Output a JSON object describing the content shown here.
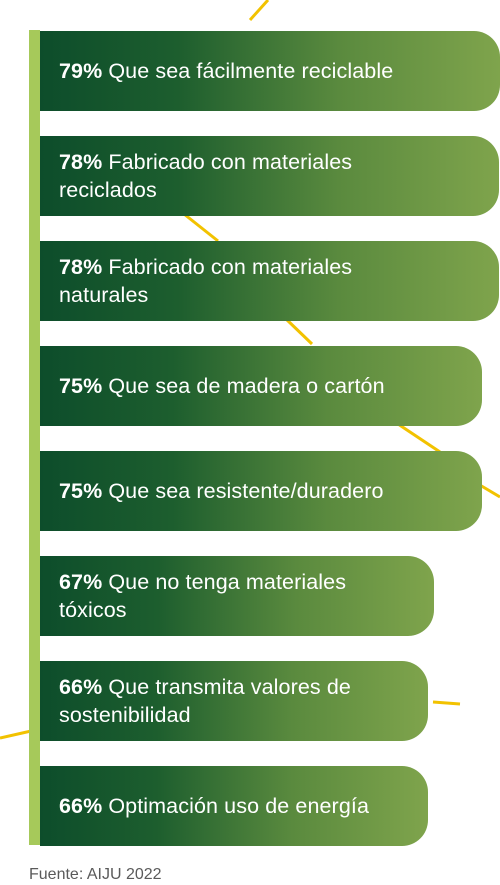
{
  "chart_data": {
    "type": "bar",
    "orientation": "horizontal",
    "unit": "%",
    "categories": [
      "Que sea fácilmente reciclable",
      "Fabricado con materiales reciclados",
      "Fabricado con materiales naturales",
      "Que sea de madera o cartón",
      "Que sea resistente/duradero",
      "Que no tenga materiales tóxicos",
      "Que transmita valores de sostenibilidad",
      "Optimación uso de energía"
    ],
    "values": [
      79,
      78,
      78,
      75,
      75,
      67,
      66,
      66
    ],
    "value_labels": [
      "79%",
      "78%",
      "78%",
      "75%",
      "75%",
      "67%",
      "66%",
      "66%"
    ],
    "bars": [
      {
        "pct": "79%",
        "label_lines": [
          "Que sea fácilmente reciclable"
        ]
      },
      {
        "pct": "78%",
        "label_lines": [
          "Fabricado con materiales",
          "reciclados"
        ]
      },
      {
        "pct": "78%",
        "label_lines": [
          "Fabricado con materiales",
          "naturales"
        ]
      },
      {
        "pct": "75%",
        "label_lines": [
          "Que sea de madera o cartón"
        ]
      },
      {
        "pct": "75%",
        "label_lines": [
          "Que sea resistente/duradero"
        ]
      },
      {
        "pct": "67%",
        "label_lines": [
          "Que no tenga materiales",
          "tóxicos"
        ]
      },
      {
        "pct": "66%",
        "label_lines": [
          "Que transmita valores de",
          "sostenibilidad"
        ]
      },
      {
        "pct": "66%",
        "label_lines": [
          "Optimación uso de energía"
        ]
      }
    ],
    "source": "Fuente: AIJU 2022",
    "colors": {
      "bar_gradient_start": "#0d4d2b",
      "bar_gradient_end": "#7fa44c",
      "accent_stripe": "#a6c95a",
      "decor_line": "#f2c200",
      "label_text": "#ffffff",
      "source_text": "#5a5a5a"
    }
  }
}
